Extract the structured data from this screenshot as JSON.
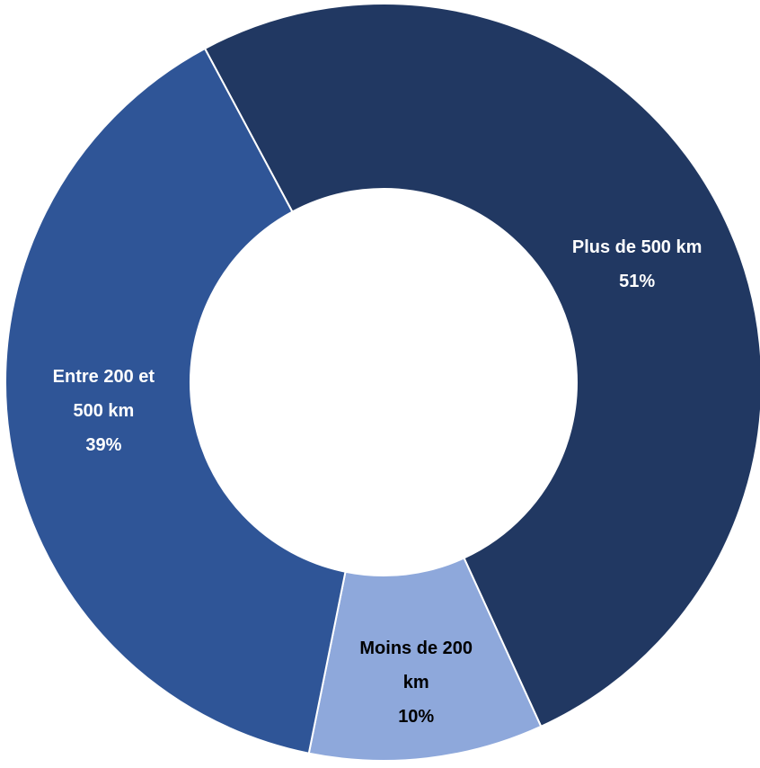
{
  "chart_data": {
    "type": "pie",
    "style": "donut",
    "title": "",
    "slices": [
      {
        "label_lines": [
          "Plus de 500 km"
        ],
        "percent_label": "51%",
        "value": 51,
        "color": "#213862",
        "text_color": "#ffffff"
      },
      {
        "label_lines": [
          "Moins de 200",
          "km"
        ],
        "percent_label": "10%",
        "value": 10,
        "color": "#8EA8DB",
        "text_color": "#000000"
      },
      {
        "label_lines": [
          "Entre 200 et",
          "500 km"
        ],
        "percent_label": "39%",
        "value": 39,
        "color": "#2F5597",
        "text_color": "#ffffff"
      }
    ],
    "separator_color": "#ffffff",
    "legend": "none"
  }
}
